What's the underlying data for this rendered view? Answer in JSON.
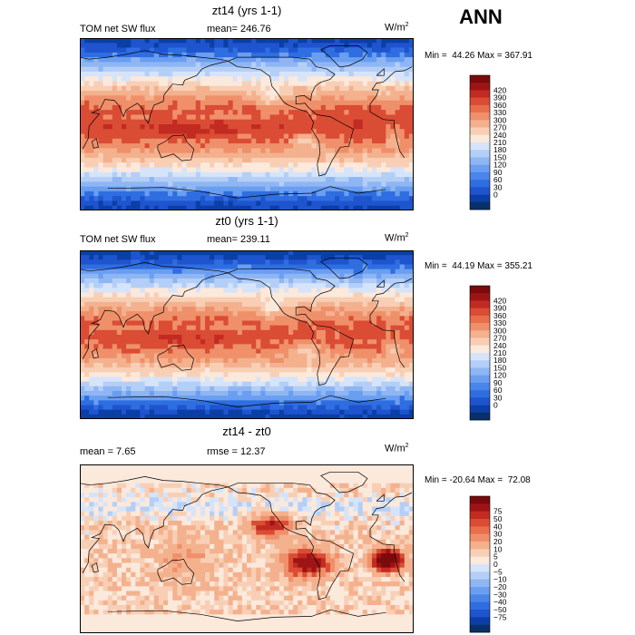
{
  "season": "ANN",
  "panels": [
    {
      "title": "zt14 (yrs 1-1)",
      "left_label": "TOM net SW flux",
      "mid_label": "mean= 246.76",
      "units_base": "W/m",
      "units_exp": "2",
      "minmax": "Min =  44.26 Max = 367.91",
      "colorbar": {
        "colors": [
          "#08306b",
          "#0b3fa6",
          "#1f54cf",
          "#2f6ee0",
          "#4a86ea",
          "#6a9ef0",
          "#8fb6f3",
          "#b4cff7",
          "#d6e4fa",
          "#fbe9dc",
          "#f8cfb5",
          "#f4b18e",
          "#ef906a",
          "#e86e4d",
          "#db4c34",
          "#c22b22",
          "#9e1416",
          "#7a0a0c"
        ],
        "labels": [
          "420",
          "390",
          "360",
          "330",
          "300",
          "270",
          "240",
          "210",
          "180",
          "150",
          "120",
          "90",
          "60",
          "30",
          "0"
        ]
      }
    },
    {
      "title": "zt0 (yrs 1-1)",
      "left_label": "TOM net SW flux",
      "mid_label": "mean= 239.11",
      "units_base": "W/m",
      "units_exp": "2",
      "minmax": "Min =  44.19 Max = 355.21",
      "colorbar": {
        "colors": [
          "#08306b",
          "#0b3fa6",
          "#1f54cf",
          "#2f6ee0",
          "#4a86ea",
          "#6a9ef0",
          "#8fb6f3",
          "#b4cff7",
          "#d6e4fa",
          "#fbe9dc",
          "#f8cfb5",
          "#f4b18e",
          "#ef906a",
          "#e86e4d",
          "#db4c34",
          "#c22b22",
          "#9e1416",
          "#7a0a0c"
        ],
        "labels": [
          "420",
          "390",
          "360",
          "330",
          "300",
          "270",
          "240",
          "210",
          "180",
          "150",
          "120",
          "90",
          "60",
          "30",
          "0"
        ]
      }
    },
    {
      "title": "zt14 - zt0",
      "left_label": "mean =   7.65",
      "mid_label": "rmse =  12.37",
      "units_base": "W/m",
      "units_exp": "2",
      "minmax": "Min = -20.64 Max =  72.08",
      "colorbar": {
        "colors": [
          "#08306b",
          "#0b3fa6",
          "#1f54cf",
          "#2f6ee0",
          "#4a86ea",
          "#6a9ef0",
          "#8fb6f3",
          "#b4cff7",
          "#d6e4fa",
          "#fbe9dc",
          "#f8cfb5",
          "#f4b18e",
          "#ef906a",
          "#e86e4d",
          "#db4c34",
          "#c22b22",
          "#9e1416",
          "#7a0a0c"
        ],
        "labels": [
          "75",
          "50",
          "40",
          "30",
          "20",
          "10",
          "5",
          "0",
          "−5",
          "−10",
          "−20",
          "−30",
          "−40",
          "−50",
          "−75"
        ]
      }
    }
  ],
  "chart_data": [
    {
      "type": "heatmap",
      "title": "zt14 (yrs 1-1)",
      "left_label": "TOM net SW flux",
      "mean": 246.76,
      "min": 44.26,
      "max": 367.91,
      "colorbar_levels": [
        0,
        30,
        60,
        90,
        120,
        150,
        180,
        210,
        240,
        270,
        300,
        330,
        360,
        390,
        420
      ]
    },
    {
      "type": "heatmap",
      "title": "zt0 (yrs 1-1)",
      "left_label": "TOM net SW flux",
      "mean": 239.11,
      "min": 44.19,
      "max": 355.21,
      "colorbar_levels": [
        0,
        30,
        60,
        90,
        120,
        150,
        180,
        210,
        240,
        270,
        300,
        330,
        360,
        390,
        420
      ]
    },
    {
      "type": "heatmap",
      "title": "zt14 - zt0",
      "mean": 7.65,
      "rmse": 12.37,
      "min": -20.64,
      "max": 72.08,
      "colorbar_levels": [
        -75,
        -50,
        -40,
        -30,
        -20,
        -10,
        -5,
        0,
        5,
        10,
        20,
        30,
        40,
        50,
        75
      ]
    }
  ]
}
